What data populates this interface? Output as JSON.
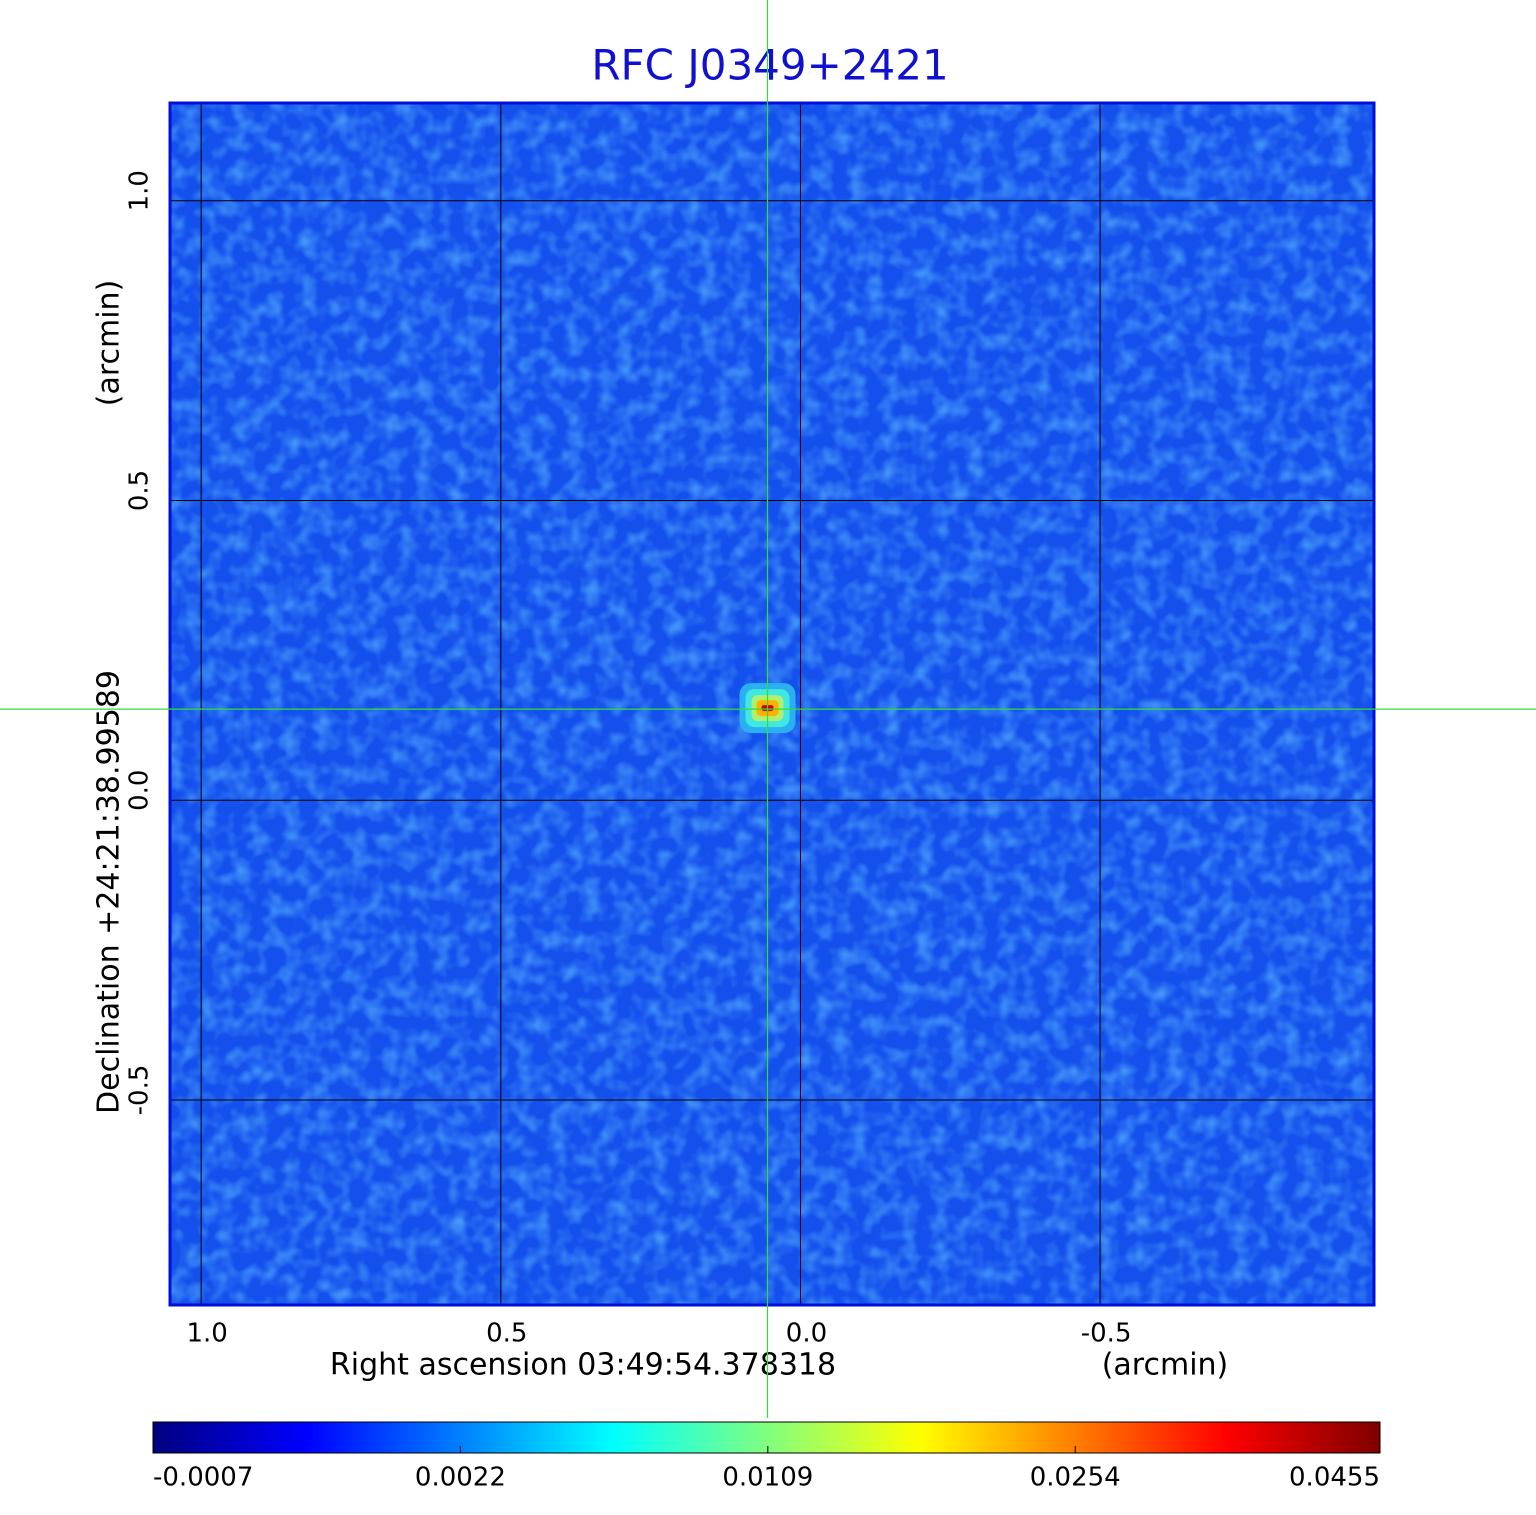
{
  "chart_data": {
    "type": "image",
    "title": "RFC J0349+2421",
    "x_label": "Right ascension  03:49:54.378318",
    "x_unit": "(arcmin)",
    "y_label": "Declination  +24:21:38.99589",
    "y_unit": "(arcmin)",
    "xlim": [
      1.052,
      -0.957
    ],
    "ylim": [
      -0.842,
      1.163
    ],
    "xticks": [
      {
        "value": 1,
        "label": "1.0"
      },
      {
        "value": 0.5,
        "label": "0.5"
      },
      {
        "value": 0,
        "label": "0.0"
      },
      {
        "value": -0.5,
        "label": "-0.5"
      }
    ],
    "yticks": [
      {
        "value": 1,
        "label": "1.0"
      },
      {
        "value": 0.5,
        "label": "0.5"
      },
      {
        "value": 0,
        "label": "0.0"
      },
      {
        "value": -0.5,
        "label": "-0.5"
      }
    ],
    "grid": true,
    "crosshair": {
      "x": 0.055,
      "y": 0.152
    },
    "colormap": "jet",
    "colorbar_scale": "sqrt",
    "clim": [
      -0.0007,
      0.0455
    ],
    "cticks": [
      -0.0007,
      0.0022,
      0.0109,
      0.0254,
      0.0455
    ]
  }
}
